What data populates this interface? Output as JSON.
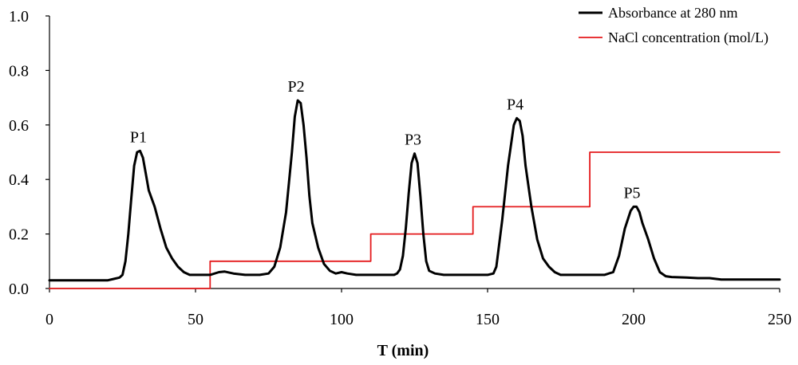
{
  "chart_data": {
    "type": "line",
    "title": "",
    "xlabel": "T (min)",
    "ylabel": "",
    "xlim": [
      0,
      250
    ],
    "ylim": [
      0,
      1.0
    ],
    "x_ticks": [
      "0",
      "50",
      "100",
      "150",
      "200",
      "250"
    ],
    "y_ticks": [
      "0.0",
      "0.2",
      "0.4",
      "0.6",
      "0.8",
      "1.0"
    ],
    "grid": false,
    "legend_position": "top-right",
    "series": [
      {
        "name": "Absorbance at 280 nm",
        "color": "#000000",
        "points": [
          [
            0,
            0.03
          ],
          [
            20,
            0.03
          ],
          [
            22,
            0.035
          ],
          [
            24,
            0.04
          ],
          [
            25,
            0.05
          ],
          [
            26,
            0.1
          ],
          [
            27,
            0.2
          ],
          [
            28,
            0.33
          ],
          [
            29,
            0.45
          ],
          [
            30,
            0.5
          ],
          [
            31,
            0.505
          ],
          [
            32,
            0.48
          ],
          [
            33,
            0.42
          ],
          [
            34,
            0.36
          ],
          [
            36,
            0.3
          ],
          [
            38,
            0.22
          ],
          [
            40,
            0.15
          ],
          [
            42,
            0.11
          ],
          [
            44,
            0.08
          ],
          [
            46,
            0.06
          ],
          [
            48,
            0.05
          ],
          [
            55,
            0.05
          ],
          [
            58,
            0.06
          ],
          [
            60,
            0.062
          ],
          [
            63,
            0.055
          ],
          [
            67,
            0.05
          ],
          [
            72,
            0.05
          ],
          [
            75,
            0.055
          ],
          [
            77,
            0.08
          ],
          [
            79,
            0.15
          ],
          [
            81,
            0.28
          ],
          [
            83,
            0.5
          ],
          [
            84,
            0.63
          ],
          [
            85,
            0.69
          ],
          [
            86,
            0.68
          ],
          [
            87,
            0.6
          ],
          [
            88,
            0.48
          ],
          [
            89,
            0.34
          ],
          [
            90,
            0.24
          ],
          [
            92,
            0.15
          ],
          [
            94,
            0.09
          ],
          [
            96,
            0.065
          ],
          [
            98,
            0.055
          ],
          [
            100,
            0.06
          ],
          [
            102,
            0.055
          ],
          [
            105,
            0.05
          ],
          [
            118,
            0.05
          ],
          [
            119,
            0.055
          ],
          [
            120,
            0.07
          ],
          [
            121,
            0.12
          ],
          [
            122,
            0.22
          ],
          [
            123,
            0.35
          ],
          [
            124,
            0.46
          ],
          [
            125,
            0.495
          ],
          [
            126,
            0.46
          ],
          [
            127,
            0.34
          ],
          [
            128,
            0.2
          ],
          [
            129,
            0.1
          ],
          [
            130,
            0.065
          ],
          [
            132,
            0.055
          ],
          [
            135,
            0.05
          ],
          [
            150,
            0.05
          ],
          [
            152,
            0.055
          ],
          [
            153,
            0.08
          ],
          [
            155,
            0.25
          ],
          [
            157,
            0.45
          ],
          [
            159,
            0.6
          ],
          [
            160,
            0.625
          ],
          [
            161,
            0.615
          ],
          [
            162,
            0.56
          ],
          [
            163,
            0.45
          ],
          [
            165,
            0.3
          ],
          [
            167,
            0.18
          ],
          [
            169,
            0.11
          ],
          [
            171,
            0.08
          ],
          [
            173,
            0.06
          ],
          [
            175,
            0.05
          ],
          [
            185,
            0.05
          ],
          [
            190,
            0.05
          ],
          [
            193,
            0.06
          ],
          [
            195,
            0.12
          ],
          [
            197,
            0.22
          ],
          [
            199,
            0.285
          ],
          [
            200,
            0.3
          ],
          [
            201,
            0.3
          ],
          [
            202,
            0.28
          ],
          [
            203,
            0.24
          ],
          [
            205,
            0.18
          ],
          [
            207,
            0.11
          ],
          [
            209,
            0.06
          ],
          [
            211,
            0.045
          ],
          [
            213,
            0.042
          ],
          [
            218,
            0.04
          ],
          [
            222,
            0.038
          ],
          [
            226,
            0.038
          ],
          [
            230,
            0.033
          ],
          [
            250,
            0.033
          ]
        ]
      },
      {
        "name": "NaCl concentration (mol/L)",
        "color": "#e41a1c",
        "step": true,
        "points": [
          [
            0,
            0
          ],
          [
            55,
            0
          ],
          [
            55,
            0.1
          ],
          [
            110,
            0.1
          ],
          [
            110,
            0.2
          ],
          [
            145,
            0.2
          ],
          [
            145,
            0.3
          ],
          [
            185,
            0.3
          ],
          [
            185,
            0.5
          ],
          [
            250,
            0.5
          ]
        ]
      }
    ],
    "annotations": [
      {
        "text": "P1",
        "x": 31,
        "y": 0.505
      },
      {
        "text": "P2",
        "x": 85,
        "y": 0.69
      },
      {
        "text": "P3",
        "x": 125,
        "y": 0.495
      },
      {
        "text": "P4",
        "x": 160,
        "y": 0.625
      },
      {
        "text": "P5",
        "x": 200,
        "y": 0.3
      }
    ]
  }
}
